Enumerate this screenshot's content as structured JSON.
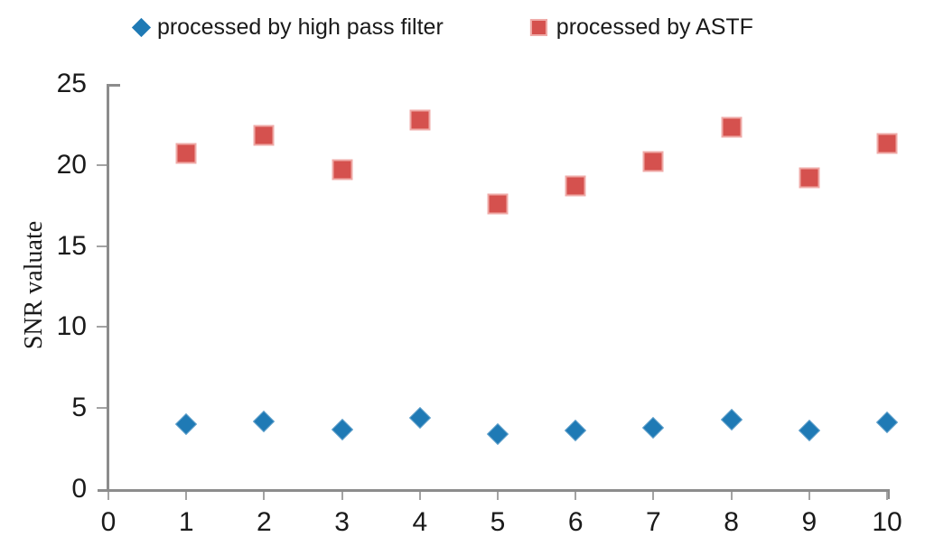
{
  "legend": [
    {
      "label": "processed by high pass filter",
      "marker": "diamond",
      "color": "#1f7ab5"
    },
    {
      "label": "processed by ASTF",
      "marker": "square",
      "color": "#d5514e"
    }
  ],
  "y_axis": {
    "title": "SNR valuate",
    "ticks": [
      0,
      5,
      10,
      15,
      20,
      25
    ]
  },
  "x_axis": {
    "ticks": [
      0,
      1,
      2,
      3,
      4,
      5,
      6,
      7,
      8,
      9,
      10
    ]
  },
  "colors": {
    "series_blue": "#1f7ab5",
    "series_red": "#d5514e",
    "axis_gray": "#8c8c8c"
  },
  "chart_data": {
    "type": "scatter",
    "title": "",
    "xlabel": "",
    "ylabel": "SNR valuate",
    "xlim": [
      0,
      10
    ],
    "ylim": [
      0,
      25
    ],
    "grid": false,
    "legend_position": "top",
    "x": [
      1,
      2,
      3,
      4,
      5,
      6,
      7,
      8,
      9,
      10
    ],
    "series": [
      {
        "name": "processed by high pass filter",
        "marker": "diamond",
        "color": "#1f7ab5",
        "values": [
          4.0,
          4.2,
          3.7,
          4.4,
          3.4,
          3.6,
          3.8,
          4.3,
          3.6,
          4.1
        ]
      },
      {
        "name": "processed by ASTF",
        "marker": "square",
        "color": "#d5514e",
        "values": [
          20.7,
          21.8,
          19.7,
          22.8,
          17.6,
          18.7,
          20.2,
          22.3,
          19.2,
          21.3
        ]
      }
    ]
  }
}
